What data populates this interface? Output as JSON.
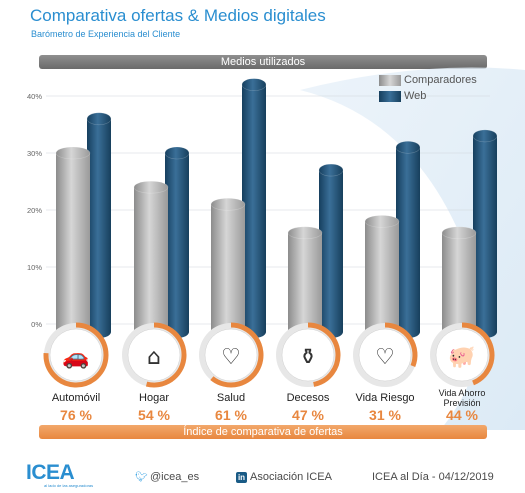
{
  "title": "Comparativa ofertas & Medios digitales",
  "subtitle": "Barómetro de Experiencia del Cliente",
  "banner_top": "Medios utilizados",
  "banner_bottom": "Índice de comparativa de ofertas",
  "colors": {
    "accent": "#2a8ed0",
    "comparadores": "#b4b4b4",
    "web": "#1d4f74",
    "index_ring": "#e8873f",
    "index_text": "#e8873f"
  },
  "chart_data": {
    "type": "bar",
    "categories": [
      "Automóvil",
      "Hogar",
      "Salud",
      "Decesos",
      "Vida Riesgo",
      "Vida Ahorro Previsión"
    ],
    "category_lines": [
      [
        "Automóvil"
      ],
      [
        "Hogar"
      ],
      [
        "Salud"
      ],
      [
        "Decesos"
      ],
      [
        "Vida Riesgo"
      ],
      [
        "Vida Ahorro",
        "Previsión"
      ]
    ],
    "series": [
      {
        "name": "Comparadores",
        "values": [
          30,
          24,
          21,
          16,
          18,
          16
        ]
      },
      {
        "name": "Web",
        "values": [
          36,
          30,
          42,
          27,
          31,
          33
        ]
      }
    ],
    "ylim": [
      0,
      40
    ],
    "yticks": [
      "0%",
      "10%",
      "20%",
      "30%",
      "40%"
    ],
    "grid": true,
    "legend": "top-right",
    "index_values": [
      "76 %",
      "54 %",
      "61 %",
      "47 %",
      "31 %",
      "44 %"
    ],
    "index_fractions": [
      0.76,
      0.54,
      0.61,
      0.47,
      0.31,
      0.44
    ],
    "icons": [
      "car-icon",
      "house-icon",
      "heart-icon",
      "coffin-icon",
      "heart-dice-icon",
      "piggy-bank-icon"
    ]
  },
  "footer": {
    "logo": "ICEA",
    "logo_tagline": "al lado de las aseguradoras",
    "twitter": "@icea_es",
    "linkedin": "Asociación ICEA",
    "date": "ICEA al Día - 04/12/2019"
  }
}
